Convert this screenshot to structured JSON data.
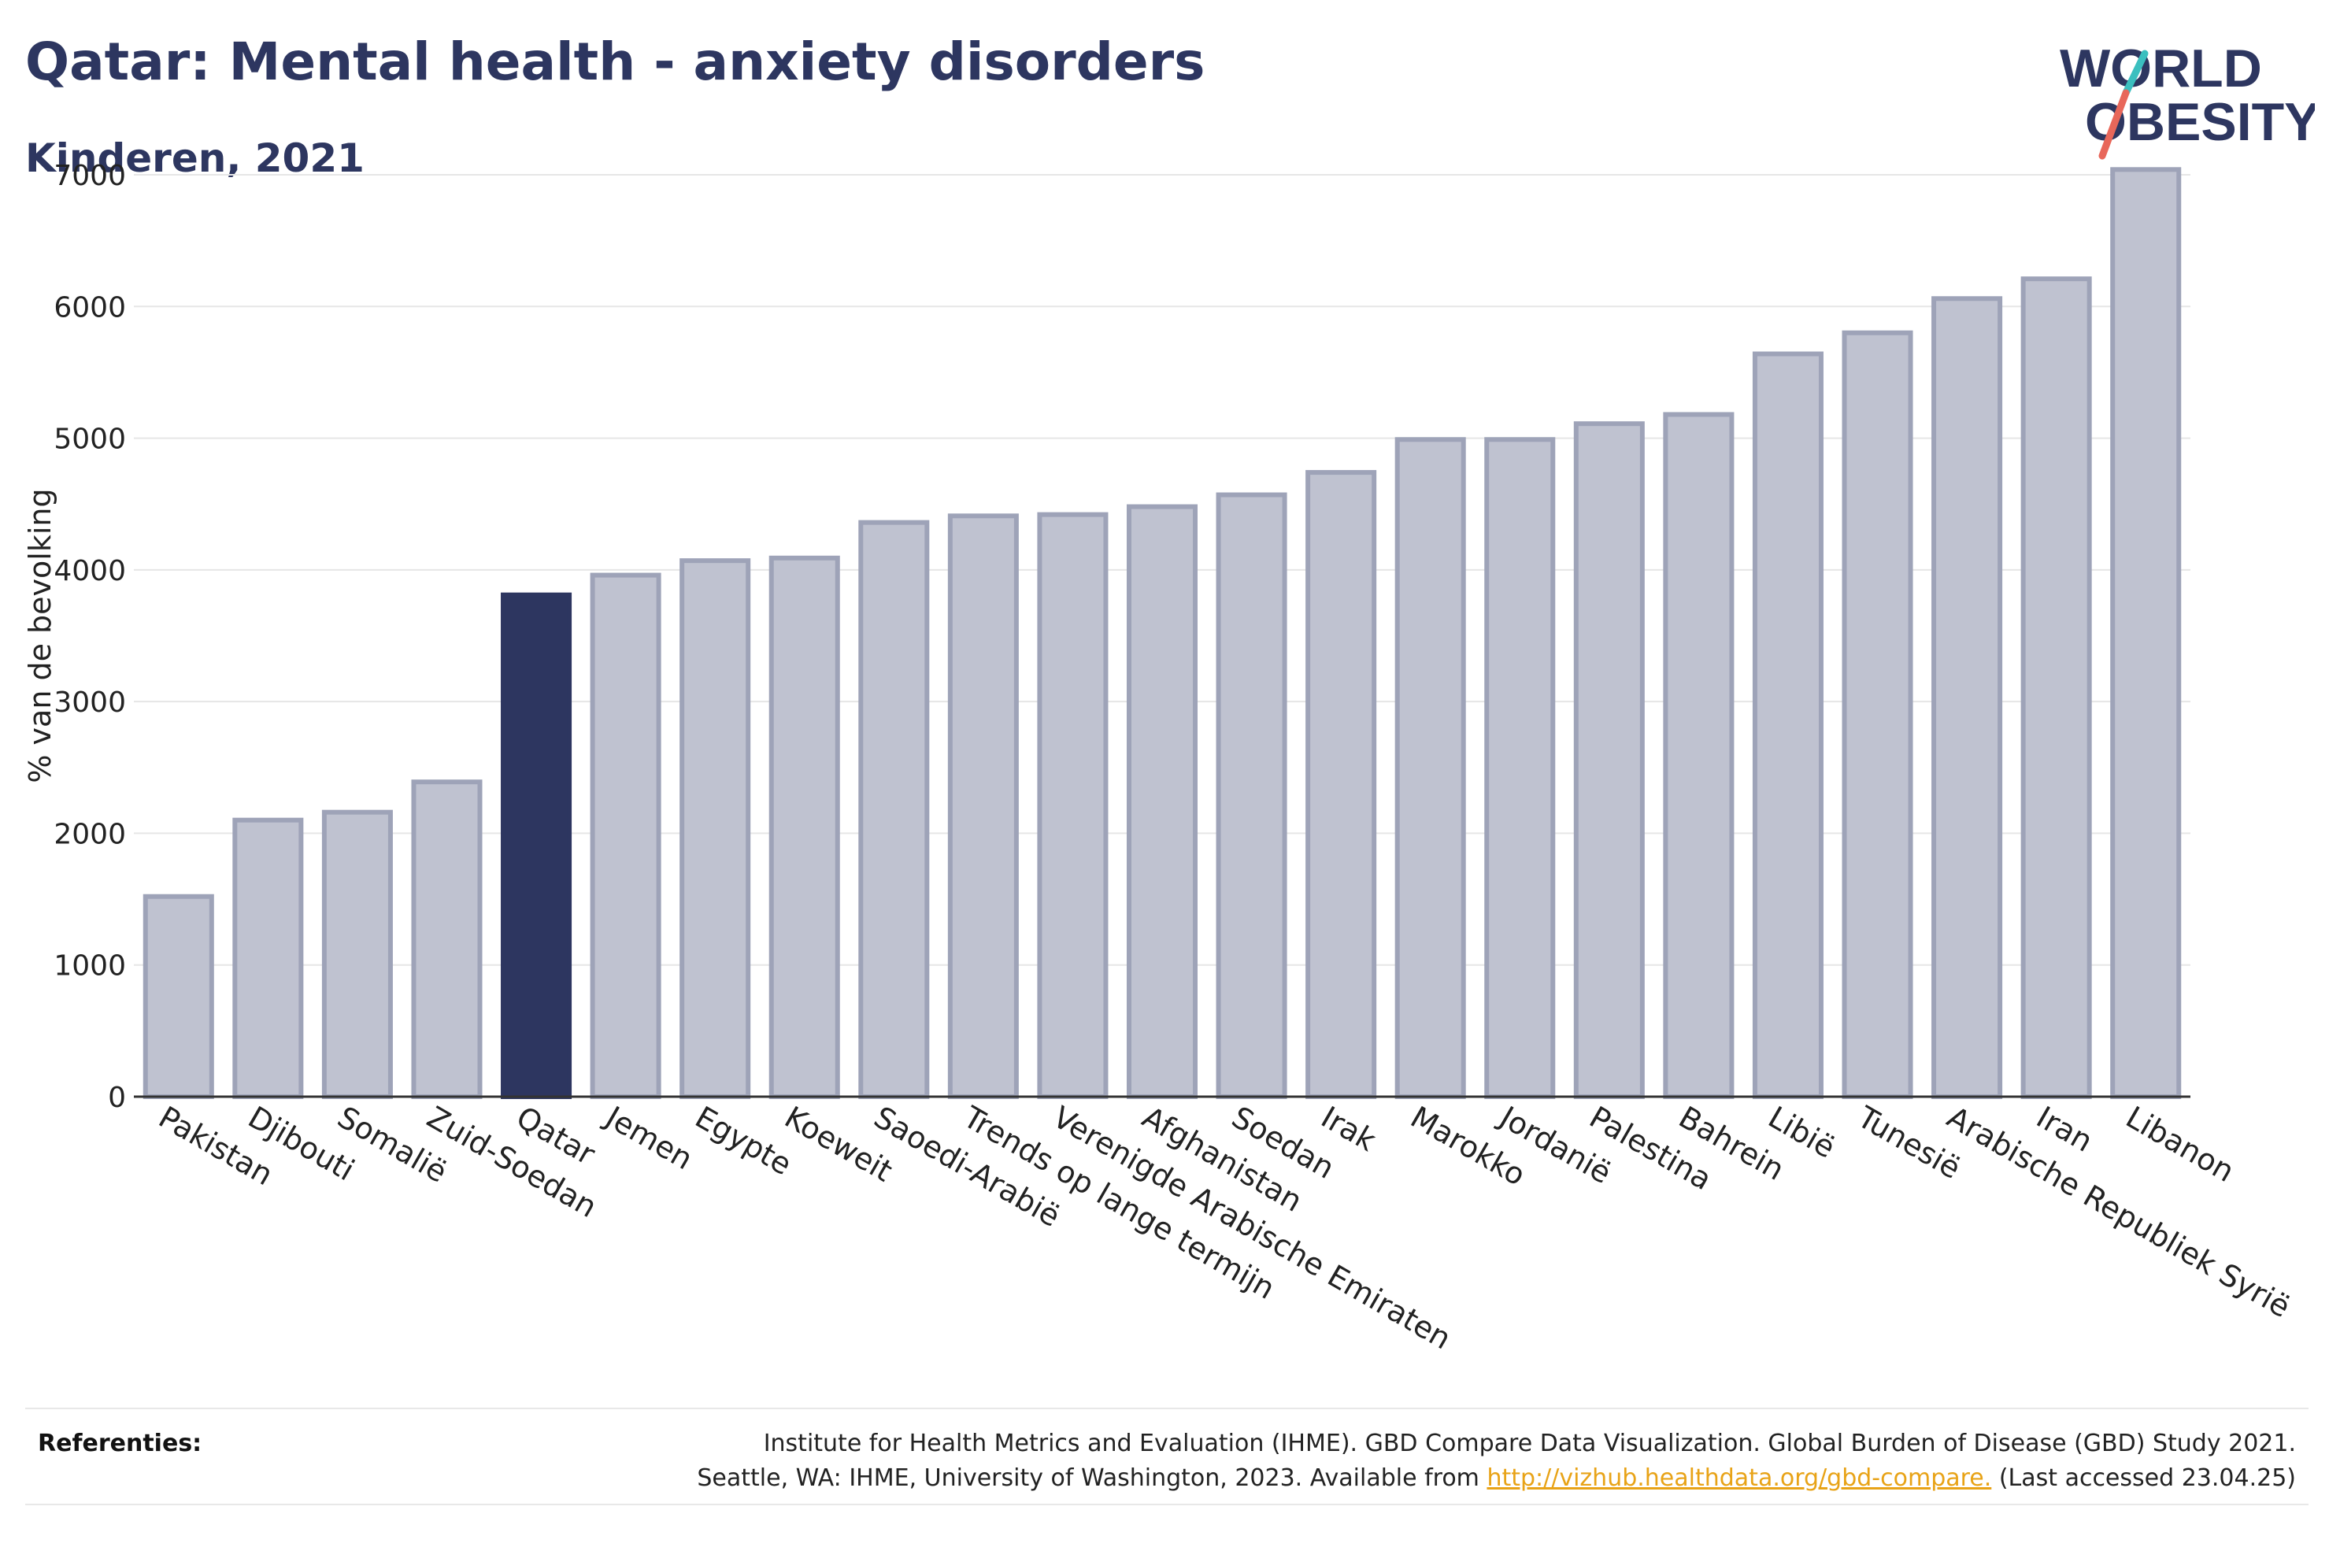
{
  "header": {
    "title": "Qatar: Mental health - anxiety disorders",
    "subtitle": "Kinderen, 2021"
  },
  "logo": {
    "line1": "WORLD",
    "line2": "OBESITY",
    "colors": {
      "text": "#2d3660",
      "slash_top": "#3bbfbf",
      "slash_bottom": "#e8675a"
    }
  },
  "chart_data": {
    "type": "bar",
    "ylabel": "% van de bevolking",
    "ylim": [
      0,
      7000
    ],
    "yticks": [
      0,
      1000,
      2000,
      3000,
      4000,
      5000,
      6000,
      7000
    ],
    "grid": true,
    "highlight": "Qatar",
    "colors": {
      "bar": "#bfc2d0",
      "bar_edge": "#9ea3b8",
      "highlight": "#2d3660"
    },
    "categories": [
      "Pakistan",
      "Djibouti",
      "Somalië",
      "Zuid-Soedan",
      "Qatar",
      "Jemen",
      "Egypte",
      "Koeweit",
      "Saoedi-Arabië",
      "Trends op lange termijn",
      "Verenigde Arabische Emiraten",
      "Afghanistan",
      "Soedan",
      "Irak",
      "Marokko",
      "Jordanië",
      "Palestina",
      "Bahrein",
      "Libië",
      "Tunesië",
      "Arabische Republiek Syrië",
      "Iran",
      "Libanon"
    ],
    "values": [
      1520,
      2100,
      2160,
      2390,
      3810,
      3960,
      4070,
      4090,
      4360,
      4410,
      4420,
      4480,
      4570,
      4740,
      4990,
      4990,
      5110,
      5180,
      5640,
      5800,
      6060,
      6210,
      7040
    ]
  },
  "references": {
    "label": "Referenties:",
    "line1": "Institute for Health Metrics and Evaluation (IHME). GBD Compare Data Visualization. Global Burden of Disease (GBD) Study 2021.",
    "line2_prefix": "Seattle, WA: IHME, University of Washington, 2023. Available from ",
    "link": "http://vizhub.healthdata.org/gbd-compare.",
    "line2_suffix": " (Last accessed 23.04.25)"
  }
}
